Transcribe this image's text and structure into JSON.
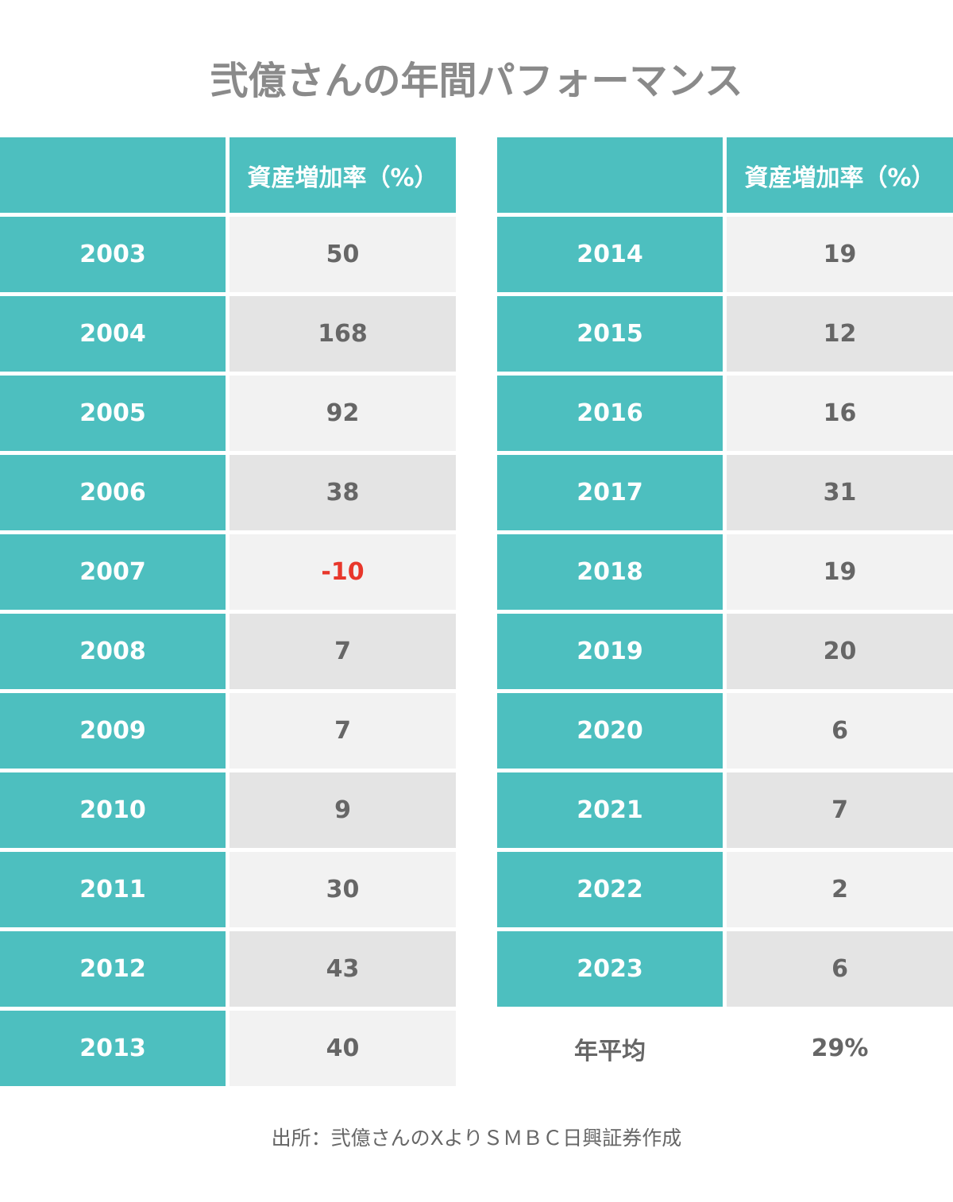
{
  "title": "弐億さんの年間パフォーマンス",
  "tables": [
    {
      "column_header": "資産増加率（%）",
      "rows": [
        [
          "2003",
          "50"
        ],
        [
          "2004",
          "168"
        ],
        [
          "2005",
          "92"
        ],
        [
          "2006",
          "38"
        ],
        [
          "2007",
          "-10"
        ],
        [
          "2008",
          "7"
        ],
        [
          "2009",
          "7"
        ],
        [
          "2010",
          "9"
        ],
        [
          "2011",
          "30"
        ],
        [
          "2012",
          "43"
        ],
        [
          "2013",
          "40"
        ]
      ]
    },
    {
      "column_header": "資産増加率（%）",
      "rows": [
        [
          "2014",
          "19"
        ],
        [
          "2015",
          "12"
        ],
        [
          "2016",
          "16"
        ],
        [
          "2017",
          "31"
        ],
        [
          "2018",
          "19"
        ],
        [
          "2019",
          "20"
        ],
        [
          "2020",
          "6"
        ],
        [
          "2021",
          "7"
        ],
        [
          "2022",
          "2"
        ],
        [
          "2023",
          "6"
        ]
      ],
      "summary": [
        "年平均",
        "29%"
      ]
    }
  ],
  "source": "出所：弐億さんのXよりＳＭＢＣ日興証券作成"
}
